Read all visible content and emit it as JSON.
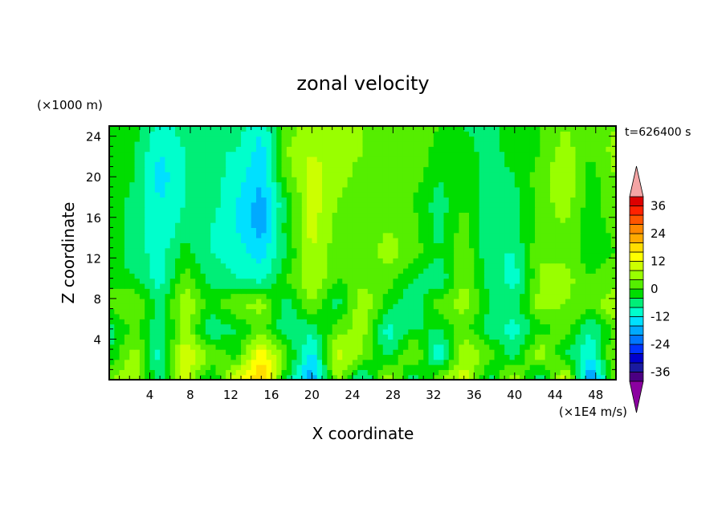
{
  "chart_data": {
    "type": "heatmap",
    "title": "zonal velocity",
    "xlabel": "X coordinate",
    "ylabel": "Z coordinate",
    "x_unit": "(×1E4 m/s)",
    "y_unit": "(×1000 m)",
    "time_label": "t=626400 s",
    "xlim": [
      0,
      50
    ],
    "ylim": [
      0,
      25
    ],
    "x_ticks": [
      4,
      8,
      12,
      16,
      20,
      24,
      28,
      32,
      36,
      40,
      44,
      48
    ],
    "y_ticks": [
      4,
      8,
      12,
      16,
      20,
      24
    ],
    "colorbar": {
      "levels": [
        -40,
        -36,
        -32,
        -28,
        -24,
        -20,
        -16,
        -12,
        -8,
        -4,
        0,
        4,
        8,
        12,
        16,
        20,
        24,
        28,
        32,
        36,
        40
      ],
      "tick_labels": [
        36,
        24,
        12,
        0,
        -12,
        -24,
        -36
      ],
      "colors": [
        "#4b0082",
        "#1a1aa0",
        "#0000cd",
        "#0033ff",
        "#0077ff",
        "#00aaff",
        "#00e0ff",
        "#00ffcc",
        "#00ee77",
        "#00dd00",
        "#55ee00",
        "#99ff00",
        "#ccff00",
        "#ffff00",
        "#ffdd00",
        "#ffaa00",
        "#ff8800",
        "#ff5500",
        "#ff2200",
        "#dd0000"
      ],
      "under_color": "#8b00a0",
      "over_color": "#f4a4a4"
    },
    "field": {
      "note": "approximate values read from the image, z rows from bottom (z=0) to top (z=25), x columns from 0 to 50",
      "z_levels": [
        0,
        2.5,
        5,
        7.5,
        10,
        12.5,
        15,
        17.5,
        20,
        22.5,
        25
      ],
      "x_columns": [
        0,
        2.5,
        5,
        7.5,
        10,
        12.5,
        15,
        17.5,
        20,
        22.5,
        25,
        27.5,
        30,
        32.5,
        35,
        37.5,
        40,
        42.5,
        45,
        47.5,
        50
      ],
      "values": [
        [
          4,
          8,
          -8,
          10,
          -6,
          12,
          20,
          -4,
          -20,
          6,
          -10,
          8,
          -8,
          4,
          10,
          -6,
          8,
          -10,
          12,
          -22,
          4
        ],
        [
          -4,
          6,
          -10,
          12,
          4,
          -2,
          16,
          2,
          -14,
          10,
          4,
          -6,
          6,
          -12,
          8,
          2,
          -6,
          8,
          -4,
          -12,
          6
        ],
        [
          -6,
          2,
          -8,
          6,
          -8,
          -4,
          2,
          -8,
          -6,
          2,
          6,
          -10,
          -4,
          -4,
          2,
          -6,
          -10,
          -2,
          2,
          -8,
          2
        ],
        [
          2,
          4,
          -6,
          8,
          -2,
          4,
          6,
          -6,
          4,
          -6,
          8,
          -2,
          -8,
          2,
          6,
          -4,
          -6,
          6,
          4,
          2,
          8
        ],
        [
          -2,
          -4,
          -10,
          2,
          -6,
          -8,
          -10,
          0,
          8,
          0,
          2,
          2,
          -4,
          -8,
          4,
          -6,
          -10,
          4,
          6,
          0,
          2
        ],
        [
          -2,
          -6,
          -10,
          -2,
          -8,
          -10,
          -14,
          -4,
          8,
          2,
          2,
          6,
          2,
          -4,
          4,
          -8,
          -8,
          4,
          2,
          -2,
          0
        ],
        [
          0,
          -6,
          -12,
          -6,
          -8,
          -12,
          -18,
          -2,
          10,
          2,
          0,
          4,
          2,
          -6,
          2,
          -8,
          -6,
          2,
          4,
          -4,
          2
        ],
        [
          0,
          -6,
          -12,
          -8,
          -6,
          -12,
          -18,
          -4,
          10,
          4,
          0,
          2,
          0,
          -6,
          0,
          -8,
          -6,
          2,
          6,
          -2,
          4
        ],
        [
          -2,
          -4,
          -14,
          -8,
          -6,
          -10,
          -16,
          2,
          10,
          6,
          2,
          0,
          2,
          -4,
          -2,
          -6,
          -4,
          2,
          8,
          -2,
          4
        ],
        [
          -2,
          -4,
          -12,
          -8,
          -8,
          -8,
          -14,
          4,
          8,
          6,
          4,
          2,
          4,
          -2,
          -2,
          -6,
          -2,
          0,
          6,
          0,
          6
        ],
        [
          0,
          -2,
          -10,
          -6,
          -8,
          -6,
          -12,
          2,
          6,
          4,
          4,
          2,
          4,
          0,
          -4,
          -6,
          -2,
          0,
          4,
          0,
          4
        ]
      ]
    }
  }
}
